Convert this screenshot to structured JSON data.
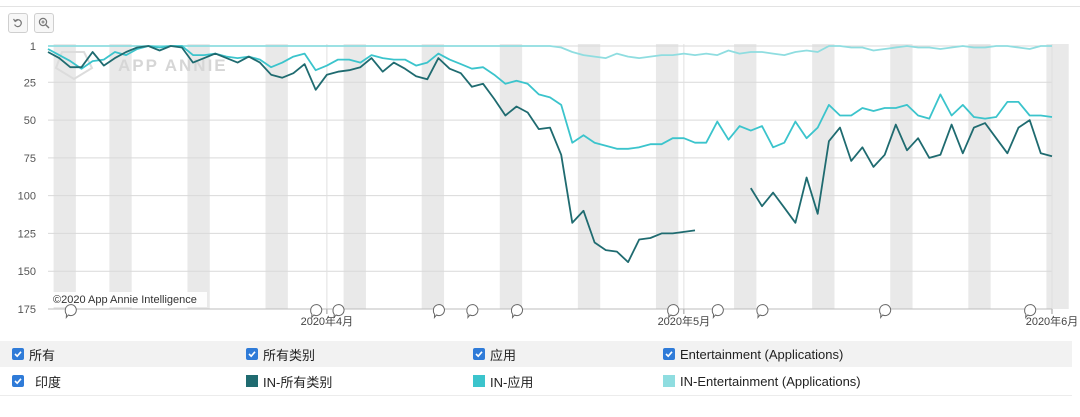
{
  "toolbar": {
    "reset_icon": "undo-icon",
    "zoom_icon": "zoom-in-icon"
  },
  "watermark": "APP ANNIE",
  "credit": "©2020 App Annie Intelligence",
  "legend_row1": [
    {
      "label": "所有",
      "checked": true
    },
    {
      "label": "所有类别",
      "checked": true
    },
    {
      "label": "应用",
      "checked": true
    },
    {
      "label": "Entertainment (Applications)",
      "checked": true
    }
  ],
  "legend_row2": {
    "country": {
      "label": "印度",
      "checked": true
    },
    "series_labels": [
      "IN-所有类别",
      "IN-应用",
      "IN-Entertainment (Applications)"
    ]
  },
  "chart_data": {
    "type": "line",
    "y_inverted": true,
    "ylim": [
      1,
      175
    ],
    "yticks": [
      1,
      25,
      50,
      75,
      100,
      125,
      150,
      175
    ],
    "x_tick_labels": [
      {
        "label": "2020年4月",
        "index": 25
      },
      {
        "label": "2020年5月",
        "index": 57
      },
      {
        "label": "2020年6月",
        "index": 90
      }
    ],
    "weekend_band_starts": [
      1,
      6,
      13,
      20,
      27,
      34,
      41,
      48,
      55,
      62,
      69,
      76,
      83,
      90
    ],
    "event_marker_indices": [
      2,
      24,
      26,
      35,
      38,
      42,
      56,
      60,
      64,
      75,
      88
    ],
    "colors": [
      "#1f6b70",
      "#3bc4cc",
      "#8fdde0"
    ],
    "series": [
      {
        "name": "IN-所有类别",
        "color": "#1f6b70",
        "values": [
          5,
          9,
          15,
          15,
          5,
          14,
          9,
          5,
          2,
          1,
          4,
          1,
          2,
          12,
          9,
          6,
          9,
          12,
          8,
          12,
          20,
          22,
          19,
          13,
          30,
          20,
          18,
          17,
          15,
          9,
          18,
          12,
          16,
          21,
          23,
          9,
          16,
          19,
          28,
          26,
          36,
          47,
          41,
          45,
          56,
          55,
          73,
          118,
          110,
          131,
          136,
          137,
          144,
          129,
          128,
          125,
          125,
          124,
          123,
          null,
          null,
          null,
          null,
          95,
          107,
          98,
          108,
          118,
          88,
          112,
          64,
          55,
          77,
          68,
          81,
          73,
          53,
          70,
          62,
          75,
          73,
          53,
          72,
          55,
          52,
          62,
          72,
          55,
          50,
          72,
          74
        ]
      },
      {
        "name": "IN-应用",
        "color": "#3bc4cc",
        "values": [
          3,
          7,
          11,
          16,
          11,
          10,
          5,
          7,
          3,
          1,
          2,
          1,
          1,
          7,
          7,
          6,
          8,
          9,
          8,
          10,
          15,
          12,
          8,
          6,
          17,
          14,
          10,
          10,
          12,
          7,
          9,
          10,
          10,
          14,
          12,
          6,
          10,
          13,
          16,
          15,
          20,
          26,
          24,
          26,
          33,
          35,
          40,
          65,
          60,
          65,
          67,
          69,
          69,
          68,
          66,
          66,
          62,
          62,
          65,
          65,
          51,
          63,
          54,
          57,
          54,
          68,
          65,
          51,
          62,
          55,
          40,
          47,
          47,
          42,
          44,
          42,
          42,
          40,
          47,
          49,
          33,
          47,
          40,
          48,
          49,
          48,
          38,
          38,
          47,
          47,
          48
        ]
      },
      {
        "name": "IN-Entertainment (Applications)",
        "color": "#8fdde0",
        "values": [
          1,
          1,
          1,
          1,
          1,
          1,
          1,
          1,
          1,
          1,
          1,
          1,
          1,
          1,
          1,
          1,
          1,
          1,
          1,
          1,
          1,
          1,
          1,
          1,
          1,
          1,
          1,
          1,
          1,
          1,
          1,
          1,
          1,
          1,
          1,
          1,
          1,
          1,
          1,
          1,
          1,
          1,
          1,
          1,
          1,
          1,
          2,
          5,
          7,
          8,
          9,
          6,
          8,
          9,
          8,
          7,
          7,
          6,
          7,
          6,
          7,
          4,
          6,
          5,
          5,
          6,
          7,
          5,
          4,
          5,
          1,
          1,
          2,
          2,
          4,
          3,
          2,
          1,
          2,
          2,
          3,
          2,
          1,
          2,
          2,
          1,
          1,
          2,
          3,
          1,
          1
        ]
      }
    ]
  }
}
